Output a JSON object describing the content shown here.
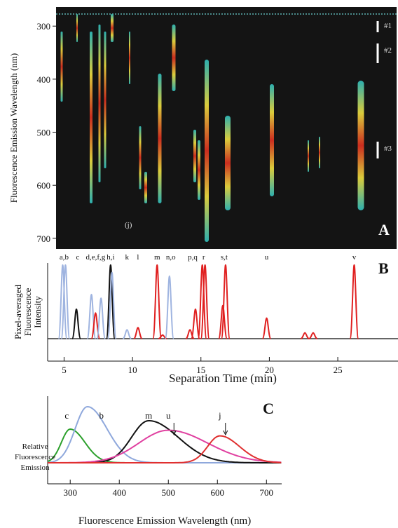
{
  "chart_data": [
    {
      "type": "image",
      "panel_label": "A",
      "y_label": "Fluorescence Emission Wavelength (nm)",
      "ylim": [
        264,
        720
      ],
      "yticks": [
        300,
        400,
        500,
        600,
        700
      ],
      "annotations": [
        "#1",
        "#2",
        "#3",
        "(j)"
      ]
    },
    {
      "type": "peaks",
      "panel_label": "B",
      "y_label": [
        "Pixel-averaged",
        "Fluorescence",
        "Intensity"
      ],
      "x_label": "Separation Time (min)",
      "xlim": [
        3.8,
        29.4
      ],
      "xticks": [
        5,
        10,
        15,
        20,
        25
      ],
      "peak_labels": {
        "labels": [
          "a,b",
          "c",
          "d,e,f,g",
          "h,i",
          "k",
          "l",
          "m",
          "n,o",
          "p,q",
          "r",
          "s,t",
          "u",
          "v"
        ],
        "x": [
          5.0,
          6.0,
          7.3,
          8.4,
          9.6,
          10.4,
          11.8,
          12.8,
          14.4,
          15.2,
          16.7,
          19.8,
          26.2
        ]
      },
      "peaks": {
        "x": [
          4.9,
          5.1,
          5.9,
          7.0,
          7.3,
          7.7,
          8.4,
          8.5,
          9.6,
          10.4,
          11.8,
          12.2,
          12.7,
          14.2,
          14.6,
          15.1,
          15.3,
          16.6,
          16.8,
          19.8,
          22.6,
          23.2,
          26.2
        ],
        "values": [
          100,
          100,
          40,
          60,
          35,
          55,
          100,
          90,
          12,
          15,
          100,
          5,
          85,
          12,
          40,
          100,
          100,
          45,
          100,
          28,
          8,
          8,
          100
        ],
        "colors": [
          "#9fb4e0",
          "#9fb4e0",
          "#111111",
          "#9fb4e0",
          "#e02020",
          "#9fb4e0",
          "#111111",
          "#9fb4e0",
          "#9fb4e0",
          "#e02020",
          "#e02020",
          "#e02020",
          "#9fb4e0",
          "#e02020",
          "#e02020",
          "#e02020",
          "#e02020",
          "#e02020",
          "#e02020",
          "#e02020",
          "#e02020",
          "#e02020",
          "#e02020"
        ]
      }
    },
    {
      "type": "spectra",
      "panel_label": "C",
      "y_label": [
        "Relative",
        "Fluorescence",
        "Emission"
      ],
      "x_label": "Fluorescence Emission Wavelength (nm)",
      "xlim": [
        254,
        731
      ],
      "xticks": [
        300,
        400,
        500,
        600,
        700
      ],
      "series": [
        {
          "name": "c",
          "color": "#2ca02c",
          "peak_x": 300,
          "peak_value": 60
        },
        {
          "name": "b",
          "color": "#8fa8dc",
          "peak_x": 335,
          "peak_value": 100
        },
        {
          "name": "m",
          "color": "#111111",
          "peak_x": 460,
          "peak_value": 75
        },
        {
          "name": "u",
          "color": "#e040a0",
          "peak_x": 500,
          "peak_value": 58
        },
        {
          "name": "j",
          "color": "#e03030",
          "peak_x": 605,
          "peak_value": 48
        }
      ]
    }
  ]
}
